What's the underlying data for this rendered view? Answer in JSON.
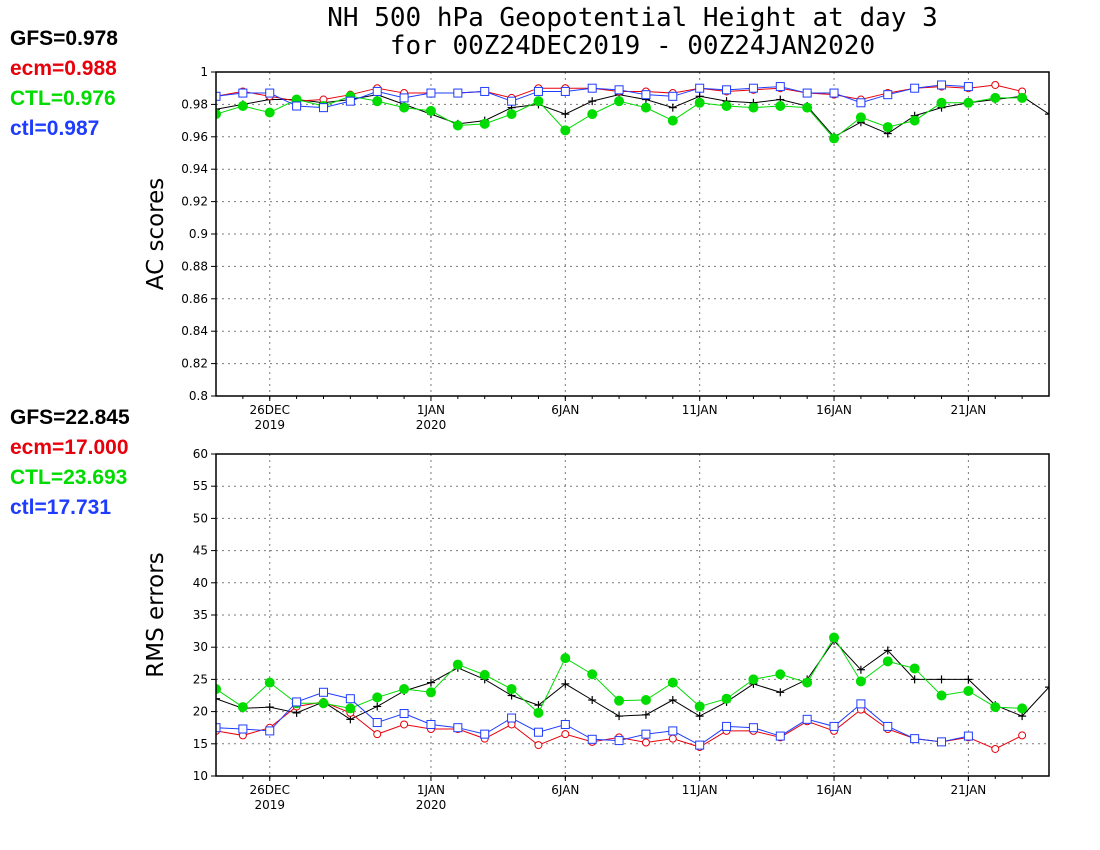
{
  "title": {
    "line1": "NH 500 hPa Geopotential Height at day 3",
    "line2": "for 00Z24DEC2019 - 00Z24JAN2020"
  },
  "colors": {
    "GFS": "#000000",
    "ecm": "#e8000b",
    "CTL": "#00dc00",
    "ctl": "#1e3cff"
  },
  "panels": {
    "ac": {
      "stats": [
        {
          "key": "GFS",
          "text": "GFS=0.978"
        },
        {
          "key": "ecm",
          "text": "ecm=0.988"
        },
        {
          "key": "CTL",
          "text": "CTL=0.976"
        },
        {
          "key": "ctl",
          "text": "ctl=0.987"
        }
      ]
    },
    "rms": {
      "stats": [
        {
          "key": "GFS",
          "text": "GFS=22.845"
        },
        {
          "key": "ecm",
          "text": "ecm=17.000"
        },
        {
          "key": "CTL",
          "text": "CTL=23.693"
        },
        {
          "key": "ctl",
          "text": "ctl=17.731"
        }
      ]
    }
  },
  "chart_data": [
    {
      "type": "line",
      "panel": "ac",
      "ylabel": "AC scores",
      "xlabel": "",
      "ylim": [
        0.8,
        1.0
      ],
      "yticks": [
        "0.8",
        "0.82",
        "0.84",
        "0.86",
        "0.88",
        "0.9",
        "0.92",
        "0.94",
        "0.96",
        "0.98",
        "1"
      ],
      "xlim_days": [
        0,
        31
      ],
      "xticks": [
        {
          "day": 2,
          "label": "26DEC",
          "year": "2019"
        },
        {
          "day": 8,
          "label": "1JAN",
          "year": "2020"
        },
        {
          "day": 13,
          "label": "6JAN",
          "year": ""
        },
        {
          "day": 18,
          "label": "11JAN",
          "year": ""
        },
        {
          "day": 23,
          "label": "16JAN",
          "year": ""
        },
        {
          "day": 28,
          "label": "21JAN",
          "year": ""
        }
      ],
      "grid": true,
      "x": [
        "24DEC",
        "25DEC",
        "26DEC",
        "27DEC",
        "28DEC",
        "29DEC",
        "30DEC",
        "31DEC",
        "1JAN",
        "2JAN",
        "3JAN",
        "4JAN",
        "5JAN",
        "6JAN",
        "7JAN",
        "8JAN",
        "9JAN",
        "10JAN",
        "11JAN",
        "12JAN",
        "13JAN",
        "14JAN",
        "15JAN",
        "16JAN",
        "17JAN",
        "18JAN",
        "19JAN",
        "20JAN",
        "21JAN",
        "22JAN",
        "23JAN",
        "24JAN"
      ],
      "series": [
        {
          "name": "GFS",
          "marker": "plus",
          "values": [
            0.977,
            0.98,
            0.983,
            0.983,
            0.981,
            0.983,
            0.986,
            0.98,
            0.974,
            0.968,
            0.97,
            0.978,
            0.98,
            0.974,
            0.982,
            0.986,
            0.983,
            0.978,
            0.985,
            0.982,
            0.981,
            0.983,
            0.979,
            0.96,
            0.969,
            0.962,
            0.973,
            0.978,
            0.981,
            0.983,
            0.985,
            0.974
          ]
        },
        {
          "name": "ecm",
          "marker": "circle",
          "values": [
            0.985,
            0.988,
            0.985,
            0.982,
            0.983,
            0.986,
            0.99,
            0.987,
            0.987,
            0.987,
            0.988,
            0.984,
            0.99,
            0.99,
            0.99,
            0.988,
            0.988,
            0.987,
            0.99,
            0.988,
            0.989,
            0.99,
            0.987,
            0.986,
            0.983,
            0.987,
            0.99,
            0.991,
            0.99,
            0.992,
            0.988,
            null
          ]
        },
        {
          "name": "CTL",
          "marker": "filled-circle",
          "values": [
            0.974,
            0.979,
            0.975,
            0.983,
            0.979,
            0.985,
            0.982,
            0.978,
            0.976,
            0.967,
            0.968,
            0.974,
            0.982,
            0.964,
            0.974,
            0.982,
            0.978,
            0.97,
            0.981,
            0.979,
            0.978,
            0.979,
            0.978,
            0.959,
            0.972,
            0.966,
            0.97,
            0.981,
            0.981,
            0.984,
            0.984,
            null
          ]
        },
        {
          "name": "ctl",
          "marker": "square",
          "values": [
            0.985,
            0.987,
            0.987,
            0.979,
            0.978,
            0.982,
            0.988,
            0.984,
            0.987,
            0.987,
            0.988,
            0.982,
            0.988,
            0.988,
            0.99,
            0.989,
            0.986,
            0.985,
            0.99,
            0.989,
            0.99,
            0.991,
            0.987,
            0.987,
            0.981,
            0.986,
            0.99,
            0.992,
            0.991,
            null,
            null,
            null
          ]
        }
      ]
    },
    {
      "type": "line",
      "panel": "rms",
      "ylabel": "RMS errors",
      "xlabel": "",
      "ylim": [
        10,
        60
      ],
      "yticks": [
        "10",
        "15",
        "20",
        "25",
        "30",
        "35",
        "40",
        "45",
        "50",
        "55",
        "60"
      ],
      "xlim_days": [
        0,
        31
      ],
      "xticks": [
        {
          "day": 2,
          "label": "26DEC",
          "year": "2019"
        },
        {
          "day": 8,
          "label": "1JAN",
          "year": "2020"
        },
        {
          "day": 13,
          "label": "6JAN",
          "year": ""
        },
        {
          "day": 18,
          "label": "11JAN",
          "year": ""
        },
        {
          "day": 23,
          "label": "16JAN",
          "year": ""
        },
        {
          "day": 28,
          "label": "21JAN",
          "year": ""
        }
      ],
      "grid": true,
      "x": [
        "24DEC",
        "25DEC",
        "26DEC",
        "27DEC",
        "28DEC",
        "29DEC",
        "30DEC",
        "31DEC",
        "1JAN",
        "2JAN",
        "3JAN",
        "4JAN",
        "5JAN",
        "6JAN",
        "7JAN",
        "8JAN",
        "9JAN",
        "10JAN",
        "11JAN",
        "12JAN",
        "13JAN",
        "14JAN",
        "15JAN",
        "16JAN",
        "17JAN",
        "18JAN",
        "19JAN",
        "20JAN",
        "21JAN",
        "22JAN",
        "23JAN",
        "24JAN"
      ],
      "series": [
        {
          "name": "GFS",
          "marker": "plus",
          "values": [
            22.0,
            20.5,
            20.7,
            19.8,
            21.5,
            18.8,
            20.8,
            23.2,
            24.5,
            26.8,
            25.0,
            22.5,
            21.0,
            24.3,
            21.8,
            19.3,
            19.5,
            21.8,
            19.3,
            21.5,
            24.3,
            23.0,
            25.0,
            31.0,
            26.5,
            29.5,
            25.0,
            25.0,
            25.0,
            21.0,
            19.3,
            23.8
          ]
        },
        {
          "name": "ecm",
          "marker": "circle",
          "values": [
            17.0,
            16.3,
            17.5,
            20.8,
            21.5,
            19.8,
            16.5,
            18.0,
            17.3,
            17.3,
            15.8,
            18.0,
            14.8,
            16.5,
            15.3,
            16.0,
            15.2,
            15.8,
            14.5,
            17.0,
            17.0,
            16.0,
            18.5,
            17.0,
            20.3,
            17.3,
            15.8,
            15.3,
            16.0,
            14.2,
            16.3,
            null
          ]
        },
        {
          "name": "CTL",
          "marker": "filled-circle",
          "values": [
            23.5,
            20.7,
            24.5,
            21.3,
            21.3,
            20.5,
            22.2,
            23.5,
            23.0,
            27.3,
            25.7,
            23.5,
            19.8,
            28.3,
            25.8,
            21.7,
            21.8,
            24.5,
            20.8,
            22.0,
            25.0,
            25.8,
            24.5,
            31.5,
            24.7,
            27.8,
            26.7,
            22.5,
            23.2,
            20.7,
            20.5,
            null
          ]
        },
        {
          "name": "ctl",
          "marker": "square",
          "values": [
            17.5,
            17.3,
            17.0,
            21.5,
            23.0,
            22.0,
            18.3,
            19.7,
            18.0,
            17.5,
            16.5,
            19.0,
            16.8,
            18.0,
            15.7,
            15.5,
            16.5,
            17.0,
            14.8,
            17.7,
            17.5,
            16.2,
            18.8,
            17.7,
            21.2,
            17.7,
            15.8,
            15.3,
            16.2,
            null,
            null,
            null
          ]
        }
      ]
    }
  ]
}
